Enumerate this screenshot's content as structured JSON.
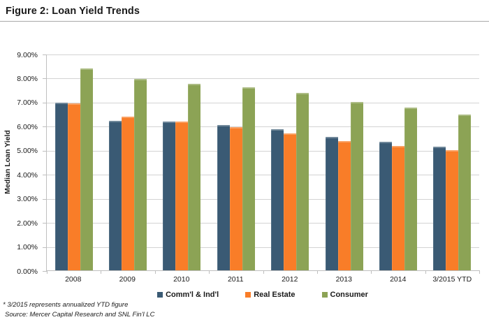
{
  "header": {
    "title": "Figure 2: Loan Yield Trends"
  },
  "footnotes": {
    "note": "* 3/2015 represents annualized YTD figure",
    "source": "Source: Mercer Capital Research and SNL Fin'l LC"
  },
  "chart_data": {
    "type": "bar",
    "title": "Figure 2: Loan Yield Trends",
    "xlabel": "",
    "ylabel": "Median Loan Yield",
    "ylim": [
      0,
      9
    ],
    "ytick_step": 1,
    "ytick_suffix": "%",
    "grid": true,
    "legend_position": "bottom",
    "categories": [
      "2008",
      "2009",
      "2010",
      "2011",
      "2012",
      "2013",
      "2014",
      "3/2015 YTD"
    ],
    "series": [
      {
        "name": "Comm'l & Ind'l",
        "color": "#3a5a74",
        "values": [
          7.0,
          6.22,
          6.2,
          6.07,
          5.88,
          5.55,
          5.35,
          5.17
        ]
      },
      {
        "name": "Real Estate",
        "color": "#f97d28",
        "values": [
          6.95,
          6.42,
          6.2,
          5.97,
          5.7,
          5.4,
          5.19,
          5.01
        ]
      },
      {
        "name": "Consumer",
        "color": "#8ca355",
        "values": [
          8.42,
          7.99,
          7.79,
          7.62,
          7.41,
          7.02,
          6.79,
          6.49
        ]
      }
    ]
  },
  "colors": {
    "gridline": "#d3d3d3",
    "axis": "#bfbfbf",
    "text": "#1a1a1a",
    "title_rule": "#a9a9a9",
    "background": "#ffffff"
  }
}
